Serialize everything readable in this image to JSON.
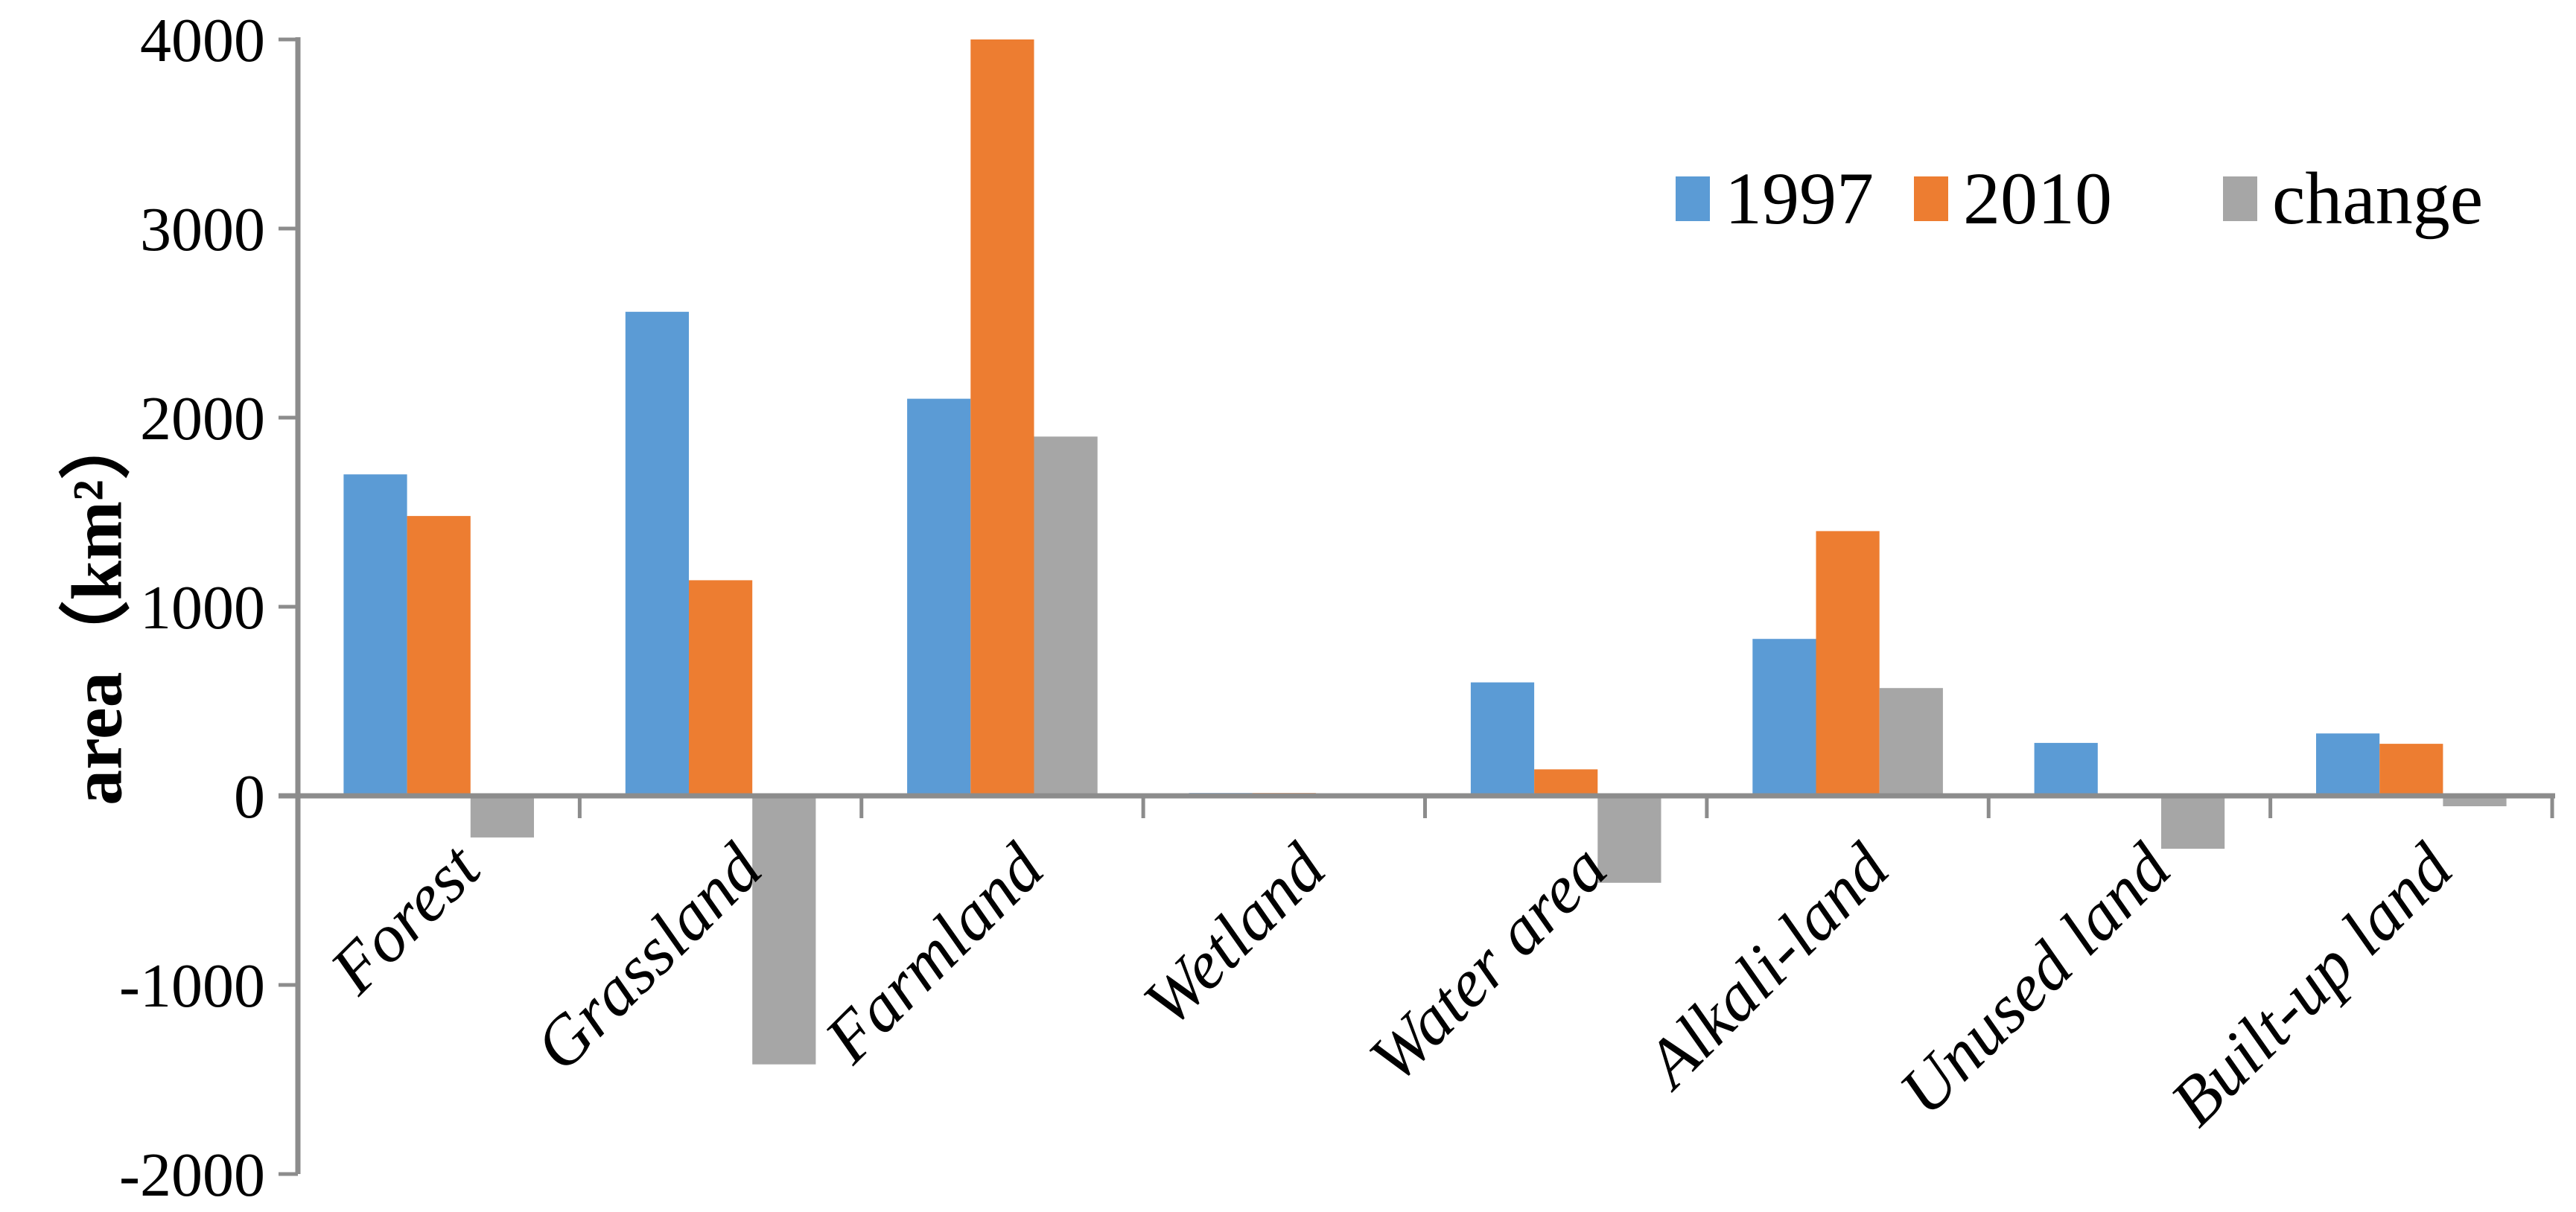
{
  "chart_data": {
    "type": "bar",
    "title": "",
    "ylabel": "area（km²）",
    "xlabel": "",
    "categories": [
      "Forest",
      "Grassland",
      "Farmland",
      "Wetland",
      "Water area",
      "Alkali-land",
      "Unused land",
      "Built-up land"
    ],
    "series": [
      {
        "name": "1997",
        "color": "#5B9BD5",
        "values": [
          1700,
          2560,
          2100,
          15,
          600,
          830,
          280,
          330
        ]
      },
      {
        "name": "2010",
        "color": "#ED7D31",
        "values": [
          1480,
          1140,
          4000,
          15,
          140,
          1400,
          0,
          275
        ]
      },
      {
        "name": "change",
        "color": "#A6A6A6",
        "values": [
          -220,
          -1420,
          1900,
          0,
          -460,
          570,
          -280,
          -55
        ]
      }
    ],
    "ylim": [
      -2000,
      4000
    ],
    "yticks": [
      4000,
      3000,
      2000,
      1000,
      0,
      -1000,
      -2000
    ],
    "ytick_labels": [
      "4000",
      "3000",
      "2000",
      "1000",
      "0",
      "-1000",
      "-2000"
    ],
    "grid": false,
    "legend_position": "top-right",
    "axis_color": "#8C8C8C",
    "text_color": "#000000"
  }
}
